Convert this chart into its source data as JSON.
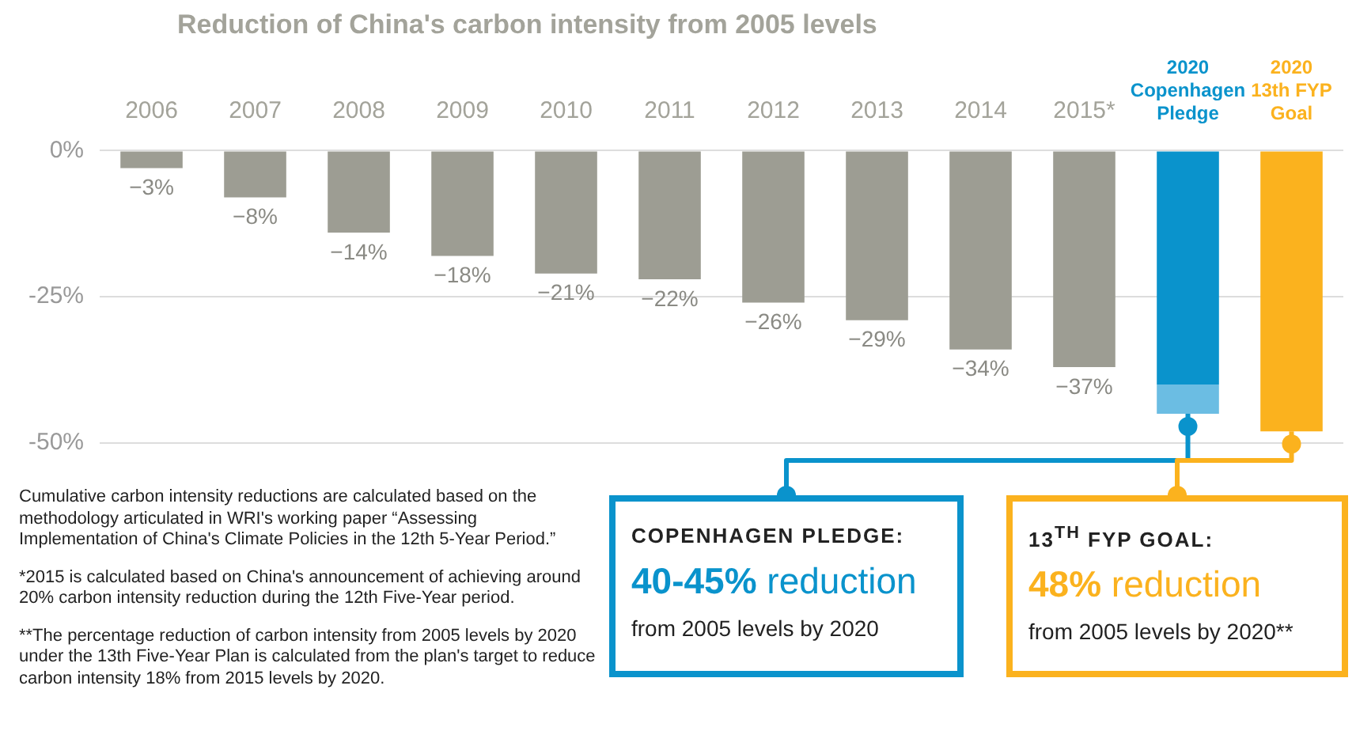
{
  "chart_data": {
    "type": "bar",
    "title": "Reduction of China's carbon intensity from 2005 levels",
    "categories": [
      "2006",
      "2007",
      "2008",
      "2009",
      "2010",
      "2011",
      "2012",
      "2013",
      "2014",
      "2015*",
      "2020\nCopenhagen\nPledge",
      "2020\n13th FYP\nGoal"
    ],
    "stacked": true,
    "series": [
      {
        "color": "#9d9d93",
        "values": [
          -3,
          -8,
          -14,
          -18,
          -21,
          -22,
          -26,
          -29,
          -34,
          -37,
          null,
          null
        ],
        "value_labels": [
          "−3%",
          "−8%",
          "−14%",
          "−18%",
          "−21%",
          "−22%",
          "−26%",
          "−29%",
          "−34%",
          "−37%",
          null,
          null
        ]
      },
      {
        "color": "#0a93cc",
        "values": [
          null,
          null,
          null,
          null,
          null,
          null,
          null,
          null,
          null,
          null,
          -40,
          null
        ]
      },
      {
        "color": "#6bbde3",
        "values": [
          null,
          null,
          null,
          null,
          null,
          null,
          null,
          null,
          null,
          null,
          -5,
          null
        ]
      },
      {
        "color": "#fbb21e",
        "values": [
          null,
          null,
          null,
          null,
          null,
          null,
          null,
          null,
          null,
          null,
          null,
          -48
        ]
      }
    ],
    "ylim": [
      -50,
      0
    ],
    "yticks": [
      {
        "value": 0,
        "label": "0%"
      },
      {
        "value": -25,
        "label": "-25%"
      },
      {
        "value": -50,
        "label": "-50%"
      }
    ],
    "grid": "y",
    "legend": false,
    "annotations": [
      "Cumulative carbon intensity reductions are calculated based on the methodology articulated in WRI's working paper “Assessing Implementation of China's Climate Policies in the 12th 5-Year Period.”",
      "*2015 is calculated based on China's announcement of achieving around 20% carbon intensity reduction during the 12th Five-Year period.",
      "**The percentage reduction of carbon intensity from 2005 levels by 2020 under the 13th Five-Year Plan is calculated from the plan's target to reduce carbon intensity 18% from 2015 levels by 2020.",
      {
        "text": "COPENHAGEN PLEDGE:\n40-45% reduction\nfrom 2005 levels by 2020",
        "x": "2020\nCopenhagen\nPledge",
        "y": -45
      },
      {
        "text": "13$^{TH}$ FYP GOAL:\n48% reduction\nfrom 2005 levels by 2020**",
        "x": "2020\n13th FYP\nGoal",
        "y": -48
      }
    ]
  }
}
